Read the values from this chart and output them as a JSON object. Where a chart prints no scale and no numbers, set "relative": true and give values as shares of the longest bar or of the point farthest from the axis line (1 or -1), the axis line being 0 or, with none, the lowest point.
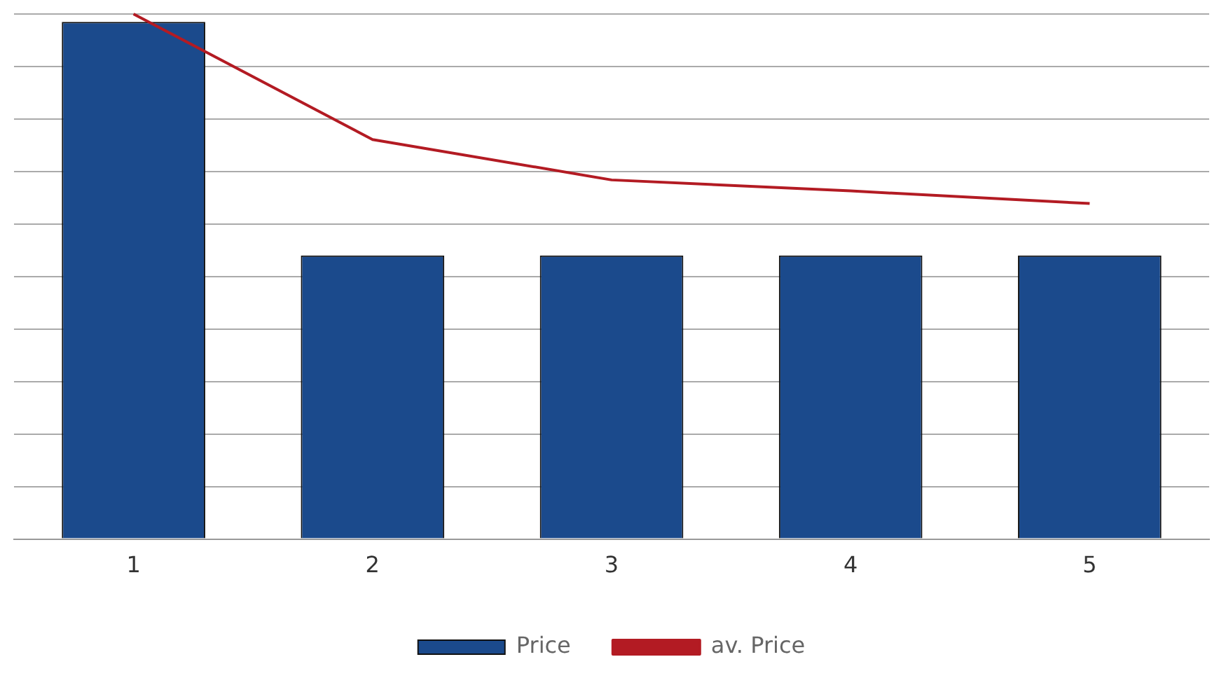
{
  "chart_data": {
    "type": "bar",
    "relative": true,
    "categories": [
      "1",
      "2",
      "3",
      "4",
      "5"
    ],
    "series": [
      {
        "name": "Price",
        "color": "#1b4a8c",
        "values": [
          0.985,
          0.54,
          0.54,
          0.54,
          0.54
        ]
      },
      {
        "name": "av. Price",
        "type": "line",
        "color": "#b31b23",
        "values": [
          1,
          0.761,
          0.684,
          0.663,
          0.639
        ]
      }
    ],
    "grid": "y",
    "legend": "bottom",
    "marker": "none"
  }
}
